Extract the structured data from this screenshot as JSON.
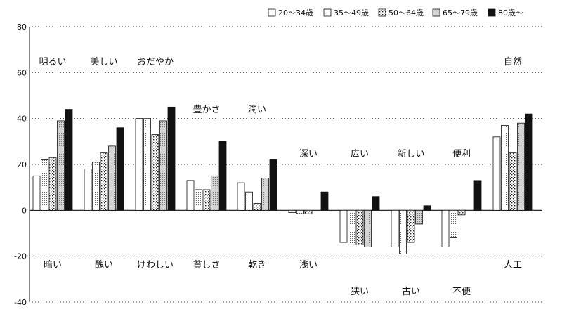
{
  "chart_data": {
    "type": "bar",
    "title": "",
    "xlabel": "",
    "ylabel": "",
    "ylim": [
      -40,
      80
    ],
    "yticks": [
      80,
      60,
      40,
      20,
      0,
      -20,
      -40
    ],
    "grid": true,
    "legend_position": "top-right",
    "categories": [
      {
        "positive": "明るい",
        "negative": "暗い"
      },
      {
        "positive": "美しい",
        "negative": "醜い"
      },
      {
        "positive": "おだやか",
        "negative": "けわしい"
      },
      {
        "positive": "豊かさ",
        "negative": "貧しさ"
      },
      {
        "positive": "潤い",
        "negative": "乾き"
      },
      {
        "positive": "深い",
        "negative": "浅い"
      },
      {
        "positive": "広い",
        "negative": "狭い"
      },
      {
        "positive": "新しい",
        "negative": "古い"
      },
      {
        "positive": "便利",
        "negative": "不便"
      },
      {
        "positive": "自然",
        "negative": "人工"
      }
    ],
    "series": [
      {
        "name": "20～34歳",
        "values": [
          15,
          18,
          40,
          13,
          12,
          -1,
          -14,
          -16,
          -16,
          32
        ]
      },
      {
        "name": "35～49歳",
        "values": [
          22,
          21,
          40,
          9,
          8,
          -1.5,
          -15,
          -19,
          -12,
          37
        ]
      },
      {
        "name": "50～64歳",
        "values": [
          23,
          25,
          33,
          9,
          3,
          -1.5,
          -15,
          -14,
          -2,
          25
        ]
      },
      {
        "name": "65～79歳",
        "values": [
          39,
          28,
          39,
          15,
          14,
          0,
          -16,
          -6,
          0,
          38
        ]
      },
      {
        "name": "80歳～",
        "values": [
          44,
          36,
          45,
          30,
          22,
          8,
          6,
          2,
          13,
          42
        ]
      }
    ]
  }
}
